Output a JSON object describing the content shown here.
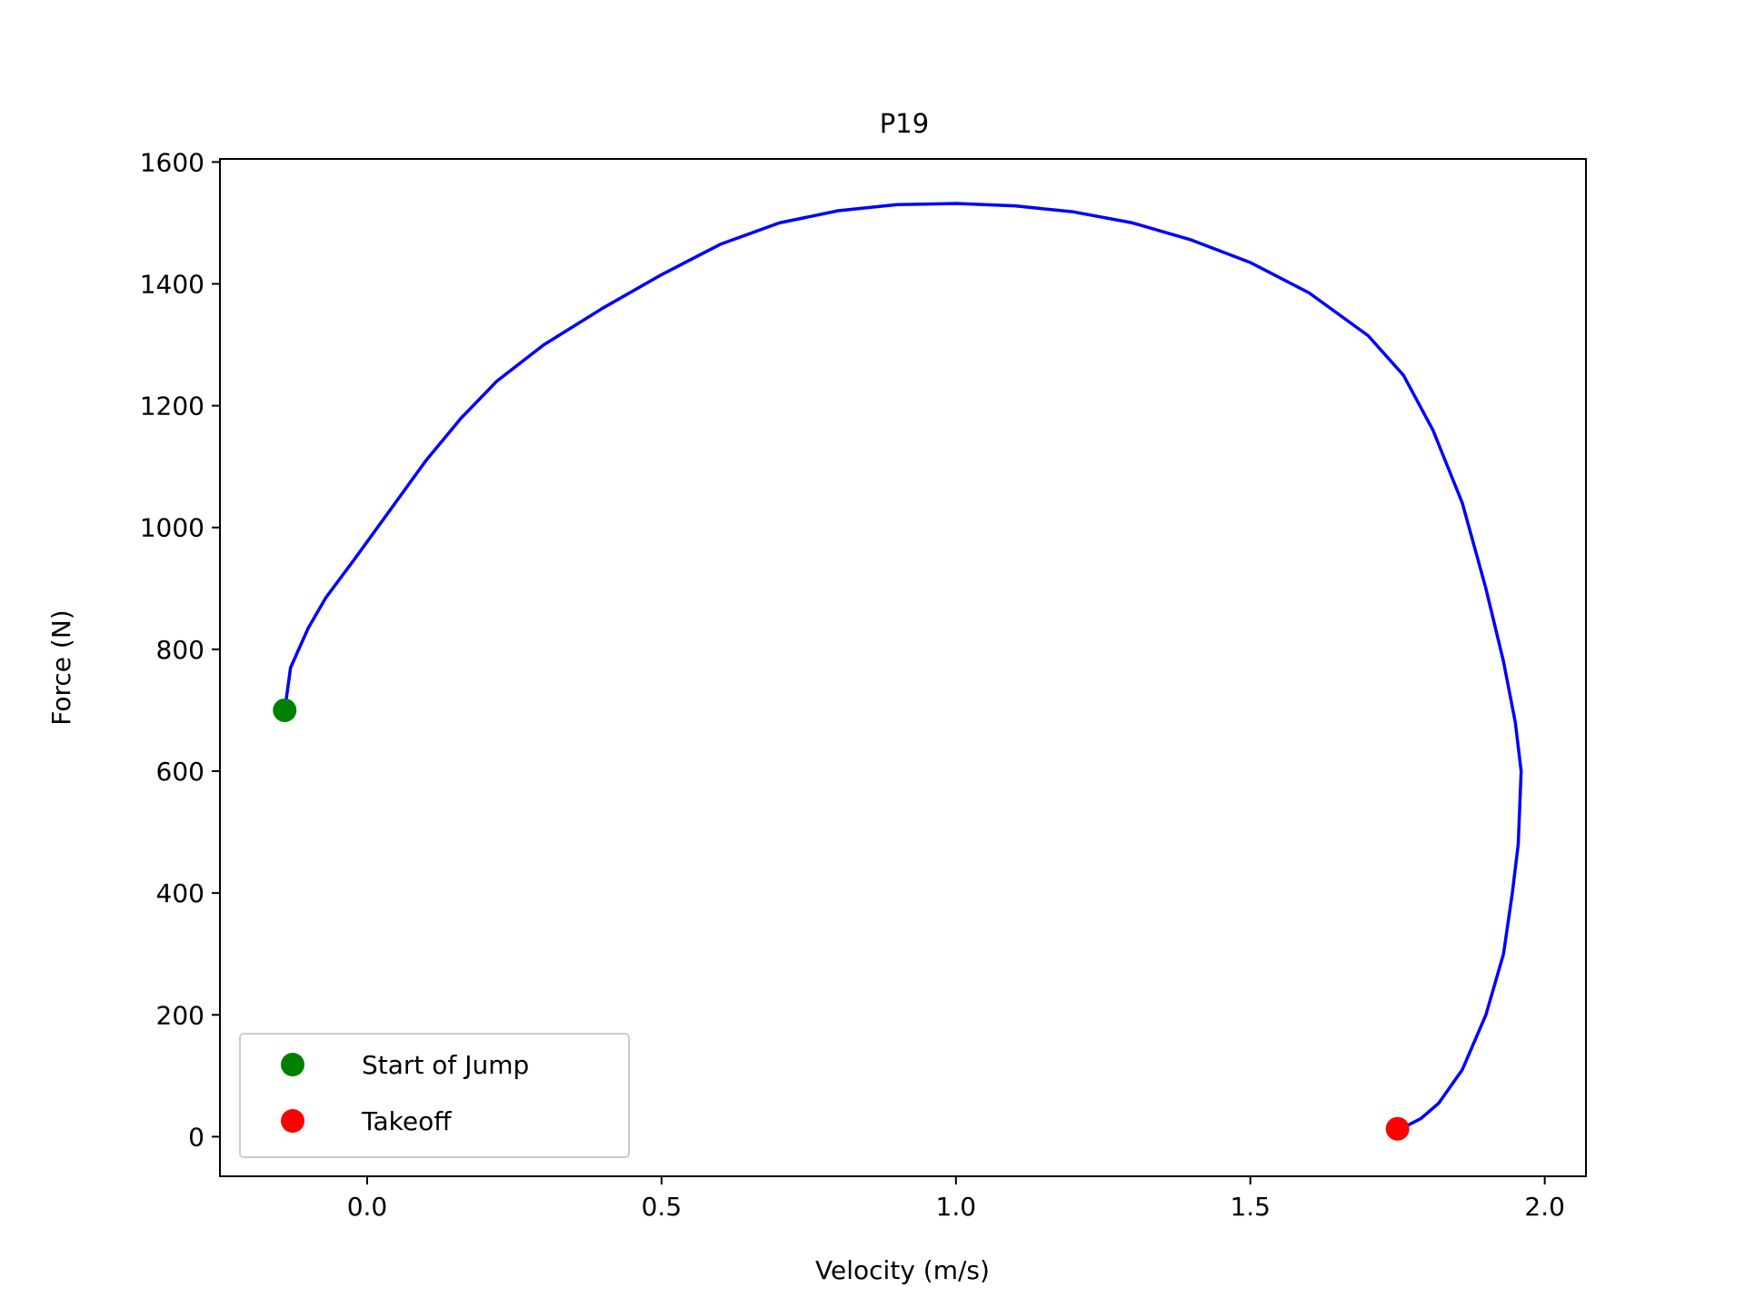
{
  "chart_data": {
    "type": "line",
    "title": "P19",
    "xlabel": "Velocity (m/s)",
    "ylabel": "Force (N)",
    "xlim": [
      -0.25,
      2.07
    ],
    "ylim": [
      -65,
      1605
    ],
    "x_ticks": [
      0.0,
      0.5,
      1.0,
      1.5,
      2.0
    ],
    "x_tick_labels": [
      "0.0",
      "0.5",
      "1.0",
      "1.5",
      "2.0"
    ],
    "y_ticks": [
      0,
      200,
      400,
      600,
      800,
      1000,
      1200,
      1400,
      1600
    ],
    "y_tick_labels": [
      "0",
      "200",
      "400",
      "600",
      "800",
      "1000",
      "1200",
      "1400",
      "1600"
    ],
    "grid": false,
    "legend_position": "lower-left",
    "series": [
      {
        "color": "#0000ff",
        "points": [
          [
            -0.14,
            700
          ],
          [
            -0.13,
            770
          ],
          [
            -0.1,
            835
          ],
          [
            -0.07,
            885
          ],
          [
            -0.02,
            950
          ],
          [
            0.04,
            1030
          ],
          [
            0.1,
            1110
          ],
          [
            0.16,
            1180
          ],
          [
            0.22,
            1240
          ],
          [
            0.3,
            1300
          ],
          [
            0.4,
            1360
          ],
          [
            0.5,
            1415
          ],
          [
            0.6,
            1465
          ],
          [
            0.7,
            1500
          ],
          [
            0.8,
            1520
          ],
          [
            0.9,
            1530
          ],
          [
            1.0,
            1532
          ],
          [
            1.1,
            1528
          ],
          [
            1.2,
            1518
          ],
          [
            1.3,
            1500
          ],
          [
            1.4,
            1472
          ],
          [
            1.5,
            1435
          ],
          [
            1.6,
            1385
          ],
          [
            1.7,
            1315
          ],
          [
            1.76,
            1250
          ],
          [
            1.81,
            1160
          ],
          [
            1.86,
            1040
          ],
          [
            1.9,
            900
          ],
          [
            1.93,
            780
          ],
          [
            1.95,
            680
          ],
          [
            1.96,
            600
          ],
          [
            1.955,
            480
          ],
          [
            1.945,
            400
          ],
          [
            1.93,
            300
          ],
          [
            1.9,
            200
          ],
          [
            1.86,
            110
          ],
          [
            1.82,
            55
          ],
          [
            1.79,
            30
          ],
          [
            1.76,
            15
          ],
          [
            1.75,
            13
          ]
        ]
      }
    ],
    "markers": [
      {
        "name": "Start of Jump",
        "x": -0.14,
        "y": 700,
        "color": "#008000"
      },
      {
        "name": "Takeoff",
        "x": 1.75,
        "y": 13,
        "color": "#ff0000"
      }
    ]
  }
}
